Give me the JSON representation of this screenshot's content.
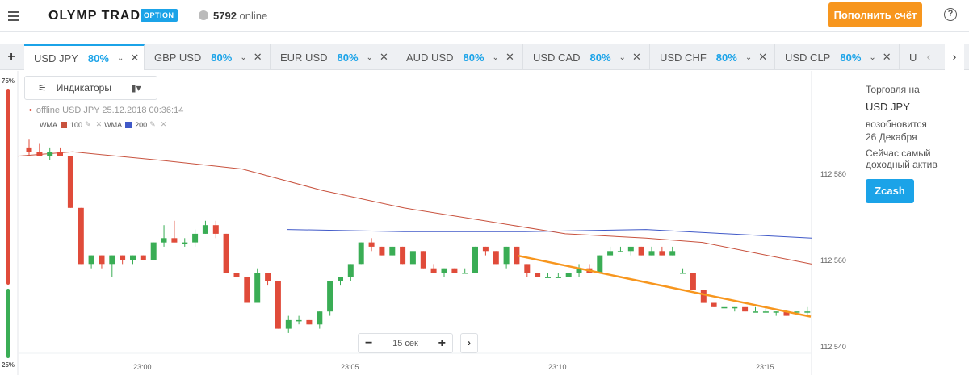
{
  "header": {
    "logo_text": "OLYMP TRADE",
    "logo_badge": "OPTION",
    "online_count": "5792",
    "online_label": "online",
    "deposit_label": "Пополнить счёт",
    "help_label": "?"
  },
  "tabs": [
    {
      "name": "USD JPY",
      "pct": "80%"
    },
    {
      "name": "GBP USD",
      "pct": "80%"
    },
    {
      "name": "EUR USD",
      "pct": "80%"
    },
    {
      "name": "AUD USD",
      "pct": "80%"
    },
    {
      "name": "USD CAD",
      "pct": "80%"
    },
    {
      "name": "USD CHF",
      "pct": "80%"
    },
    {
      "name": "USD CLP",
      "pct": "80%"
    },
    {
      "name": "U",
      "pct": ""
    }
  ],
  "toolbar": {
    "add_tab": "+",
    "indicators_label": "Индикаторы",
    "offline_text": "offline USD JPY 25.12.2018 00:36:14",
    "wma1_label": "WMA",
    "wma1_period": "100",
    "wma2_label": "WMA",
    "wma2_period": "200",
    "zoom_value": "15 сек",
    "zoom_minus": "−",
    "zoom_plus": "+"
  },
  "gauge": {
    "top_label": "75%",
    "bottom_label": "25%",
    "top_fraction": 0.75
  },
  "chart_data": {
    "type": "candlestick",
    "price_ticks": [
      "112.580",
      "112.560",
      "112.540"
    ],
    "time_ticks": [
      "23:00",
      "23:05",
      "23:10",
      "23:15"
    ],
    "ylim": [
      112.537,
      112.59
    ],
    "x_range_minutes": [
      57.1,
      78.5
    ],
    "series": [
      {
        "name": "WMA 100",
        "color": "#c8523e"
      },
      {
        "name": "WMA 200",
        "color": "#4059c8"
      }
    ],
    "up_color": "#3aad55",
    "down_color": "#e04b3a",
    "trend_color": "#f7961e",
    "candles": [
      [
        0,
        112.586,
        112.588,
        112.584,
        112.585
      ],
      [
        1,
        112.585,
        112.587,
        112.584,
        112.584
      ],
      [
        2,
        112.584,
        112.586,
        112.583,
        112.585
      ],
      [
        3,
        112.585,
        112.586,
        112.584,
        112.584
      ],
      [
        4,
        112.584,
        112.584,
        112.572,
        112.572
      ],
      [
        5,
        112.572,
        112.572,
        112.559,
        112.559
      ],
      [
        6,
        112.559,
        112.561,
        112.558,
        112.561
      ],
      [
        7,
        112.561,
        112.561,
        112.558,
        112.559
      ],
      [
        8,
        112.559,
        112.561,
        112.556,
        112.561
      ],
      [
        9,
        112.561,
        112.561,
        112.559,
        112.56
      ],
      [
        10,
        112.56,
        112.561,
        112.559,
        112.561
      ],
      [
        11,
        112.561,
        112.561,
        112.56,
        112.56
      ],
      [
        12,
        112.56,
        112.564,
        112.56,
        112.564
      ],
      [
        13,
        112.564,
        112.568,
        112.563,
        112.565
      ],
      [
        14,
        112.565,
        112.569,
        112.564,
        112.564
      ],
      [
        15,
        112.564,
        112.565,
        112.563,
        112.564
      ],
      [
        16,
        112.564,
        112.567,
        112.563,
        112.566
      ],
      [
        17,
        112.566,
        112.569,
        112.566,
        112.568
      ],
      [
        18,
        112.568,
        112.569,
        112.565,
        112.566
      ],
      [
        19,
        112.566,
        112.566,
        112.557,
        112.557
      ],
      [
        20,
        112.557,
        112.557,
        112.556,
        112.556
      ],
      [
        21,
        112.556,
        112.556,
        112.55,
        112.55
      ],
      [
        22,
        112.55,
        112.558,
        112.55,
        112.557
      ],
      [
        23,
        112.557,
        112.557,
        112.554,
        112.555
      ],
      [
        24,
        112.555,
        112.555,
        112.544,
        112.544
      ],
      [
        25,
        112.544,
        112.547,
        112.543,
        112.546
      ],
      [
        26,
        112.546,
        112.547,
        112.545,
        112.546
      ],
      [
        27,
        112.546,
        112.546,
        112.545,
        112.545
      ],
      [
        28,
        112.545,
        112.548,
        112.544,
        112.548
      ],
      [
        29,
        112.548,
        112.555,
        112.547,
        112.555
      ],
      [
        30,
        112.555,
        112.556,
        112.554,
        112.556
      ],
      [
        31,
        112.556,
        112.559,
        112.555,
        112.559
      ],
      [
        32,
        112.559,
        112.564,
        112.559,
        112.564
      ],
      [
        33,
        112.564,
        112.565,
        112.562,
        112.563
      ],
      [
        34,
        112.563,
        112.563,
        112.561,
        112.561
      ],
      [
        35,
        112.561,
        112.563,
        112.561,
        112.563
      ],
      [
        36,
        112.563,
        112.563,
        112.559,
        112.559
      ],
      [
        37,
        112.559,
        112.562,
        112.559,
        112.562
      ],
      [
        38,
        112.562,
        112.562,
        112.558,
        112.558
      ],
      [
        39,
        112.558,
        112.559,
        112.557,
        112.557
      ],
      [
        40,
        112.557,
        112.558,
        112.556,
        112.558
      ],
      [
        41,
        112.558,
        112.558,
        112.557,
        112.557
      ],
      [
        42,
        112.557,
        112.558,
        112.557,
        112.557
      ],
      [
        43,
        112.557,
        112.563,
        112.557,
        112.563
      ],
      [
        44,
        112.563,
        112.563,
        112.561,
        112.562
      ],
      [
        45,
        112.562,
        112.562,
        112.559,
        112.559
      ],
      [
        46,
        112.559,
        112.563,
        112.558,
        112.563
      ],
      [
        47,
        112.563,
        112.563,
        112.559,
        112.559
      ],
      [
        48,
        112.559,
        112.559,
        112.556,
        112.557
      ],
      [
        49,
        112.557,
        112.557,
        112.556,
        112.556
      ],
      [
        50,
        112.556,
        112.557,
        112.556,
        112.556
      ],
      [
        51,
        112.556,
        112.557,
        112.556,
        112.556
      ],
      [
        52,
        112.556,
        112.557,
        112.556,
        112.557
      ],
      [
        53,
        112.557,
        112.559,
        112.556,
        112.558
      ],
      [
        54,
        112.558,
        112.559,
        112.557,
        112.557
      ],
      [
        55,
        112.557,
        112.561,
        112.557,
        112.561
      ],
      [
        56,
        112.561,
        112.563,
        112.561,
        112.562
      ],
      [
        57,
        112.562,
        112.563,
        112.562,
        112.562
      ],
      [
        58,
        112.562,
        112.563,
        112.561,
        112.563
      ],
      [
        59,
        112.563,
        112.563,
        112.561,
        112.561
      ],
      [
        60,
        112.561,
        112.563,
        112.561,
        112.562
      ],
      [
        61,
        112.562,
        112.563,
        112.561,
        112.561
      ],
      [
        62,
        112.561,
        112.563,
        112.561,
        112.562
      ],
      [
        63,
        112.557,
        112.558,
        112.557,
        112.557
      ],
      [
        64,
        112.557,
        112.557,
        112.553,
        112.553
      ],
      [
        65,
        112.553,
        112.553,
        112.55,
        112.55
      ],
      [
        66,
        112.55,
        112.55,
        112.549,
        112.549
      ],
      [
        67,
        112.549,
        112.549,
        112.549,
        112.549
      ],
      [
        68,
        112.549,
        112.549,
        112.548,
        112.549
      ],
      [
        69,
        112.549,
        112.549,
        112.548,
        112.548
      ],
      [
        70,
        112.548,
        112.549,
        112.548,
        112.548
      ],
      [
        71,
        112.548,
        112.549,
        112.548,
        112.548
      ],
      [
        72,
        112.548,
        112.548,
        112.547,
        112.548
      ],
      [
        73,
        112.548,
        112.548,
        112.547,
        112.547
      ],
      [
        74,
        112.548,
        112.548,
        112.548,
        112.548
      ],
      [
        75,
        112.548,
        112.549,
        112.547,
        112.548
      ]
    ]
  },
  "side_panel": {
    "line1": "Торговля на",
    "asset": "USD JPY",
    "line3": "возобновится",
    "line4": "26 Декабря",
    "line5": "Сейчас самый",
    "line6": "доходный актив",
    "button": "Zcash"
  }
}
